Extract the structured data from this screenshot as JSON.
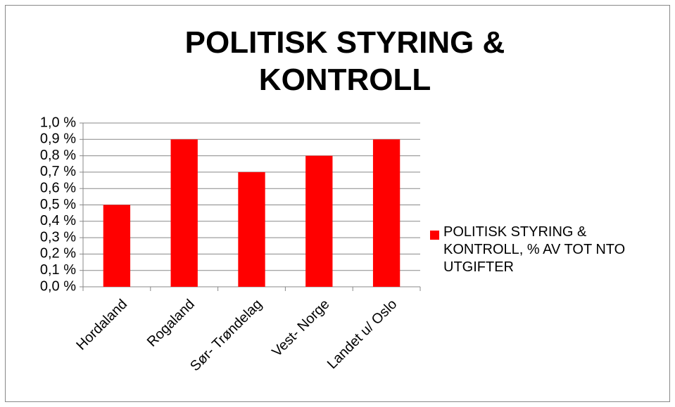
{
  "chart_data": {
    "type": "bar",
    "title": "POLITISK STYRING & KONTROLL",
    "categories": [
      "Hordaland",
      "Rogaland",
      "Sør- Trøndelag",
      "Vest- Norge",
      "Landet u/ Oslo"
    ],
    "series": [
      {
        "name": "POLITISK STYRING & KONTROLL, % AV TOT NTO UTGIFTER",
        "color": "#ff0000",
        "values": [
          0.5,
          0.9,
          0.7,
          0.8,
          0.9
        ]
      }
    ],
    "ylim": [
      0,
      1.0
    ],
    "yticks": [
      {
        "value": 0,
        "label": "0,0 %"
      },
      {
        "value": 0.1,
        "label": "0,1 %"
      },
      {
        "value": 0.2,
        "label": "0,2 %"
      },
      {
        "value": 0.3,
        "label": "0,3 %"
      },
      {
        "value": 0.4,
        "label": "0,4 %"
      },
      {
        "value": 0.5,
        "label": "0,5 %"
      },
      {
        "value": 0.6,
        "label": "0,6 %"
      },
      {
        "value": 0.7,
        "label": "0,7 %"
      },
      {
        "value": 0.8,
        "label": "0,8 %"
      },
      {
        "value": 0.9,
        "label": "0,9 %"
      },
      {
        "value": 1.0,
        "label": "1,0 %"
      }
    ],
    "grid": true,
    "legend": "right"
  }
}
